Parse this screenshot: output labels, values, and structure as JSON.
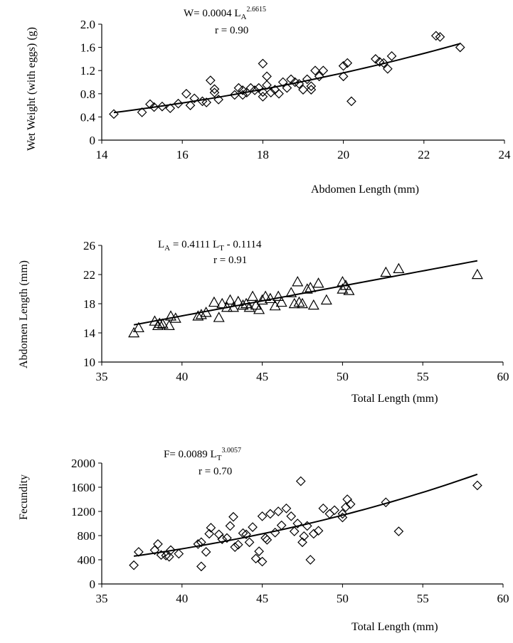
{
  "chart_data": [
    {
      "type": "scatter",
      "marker": "diamond",
      "equation": {
        "prefix": "W= 0.0004 L",
        "subscript": "A",
        "superscript": "2.6615",
        "r": "r = 0.90"
      },
      "xlabel": "Abdomen Length (mm)",
      "ylabel": "Wet Weight (with eggs) (g)",
      "xlim": [
        14,
        24
      ],
      "ylim": [
        0,
        2.0
      ],
      "xticks": [
        "14",
        "16",
        "18",
        "20",
        "22",
        "24"
      ],
      "yticks": [
        "0",
        "0.4",
        "0.8",
        "1.2",
        "1.6",
        "2.0"
      ],
      "points": [
        [
          14.3,
          0.45
        ],
        [
          15.0,
          0.48
        ],
        [
          15.2,
          0.62
        ],
        [
          15.3,
          0.57
        ],
        [
          15.5,
          0.58
        ],
        [
          15.7,
          0.55
        ],
        [
          15.9,
          0.63
        ],
        [
          16.1,
          0.8
        ],
        [
          16.2,
          0.6
        ],
        [
          16.3,
          0.72
        ],
        [
          16.5,
          0.67
        ],
        [
          16.6,
          0.65
        ],
        [
          16.7,
          1.03
        ],
        [
          16.8,
          0.88
        ],
        [
          16.9,
          0.7
        ],
        [
          16.8,
          0.82
        ],
        [
          17.3,
          0.78
        ],
        [
          17.4,
          0.9
        ],
        [
          17.5,
          0.78
        ],
        [
          17.5,
          0.86
        ],
        [
          17.6,
          0.82
        ],
        [
          17.7,
          0.9
        ],
        [
          17.8,
          0.86
        ],
        [
          17.9,
          0.9
        ],
        [
          18.0,
          1.32
        ],
        [
          18.0,
          0.83
        ],
        [
          18.0,
          0.75
        ],
        [
          18.1,
          1.1
        ],
        [
          18.1,
          0.95
        ],
        [
          18.2,
          0.82
        ],
        [
          18.3,
          0.87
        ],
        [
          18.4,
          0.8
        ],
        [
          18.5,
          1.0
        ],
        [
          18.6,
          0.9
        ],
        [
          18.7,
          1.05
        ],
        [
          18.8,
          1.0
        ],
        [
          18.9,
          0.97
        ],
        [
          19.0,
          0.87
        ],
        [
          19.1,
          1.05
        ],
        [
          19.2,
          0.93
        ],
        [
          19.2,
          0.87
        ],
        [
          19.3,
          1.2
        ],
        [
          19.4,
          1.1
        ],
        [
          19.5,
          1.2
        ],
        [
          20.0,
          1.28
        ],
        [
          20.0,
          1.1
        ],
        [
          20.1,
          1.33
        ],
        [
          20.2,
          0.67
        ],
        [
          20.8,
          1.4
        ],
        [
          20.9,
          1.35
        ],
        [
          21.0,
          1.33
        ],
        [
          21.1,
          1.23
        ],
        [
          21.2,
          1.45
        ],
        [
          22.3,
          1.8
        ],
        [
          22.4,
          1.78
        ],
        [
          22.9,
          1.6
        ]
      ],
      "trend": {
        "type": "power",
        "a": 0.0004,
        "b": 2.6615,
        "x_start": 14.3,
        "x_end": 22.9
      }
    },
    {
      "type": "scatter",
      "marker": "triangle",
      "equation": {
        "p1": "L",
        "s1": "A",
        "p2": " = 0.4111 L",
        "s2": "T",
        "p3": " - 0.1114",
        "r": "r = 0.91"
      },
      "xlabel": "Total Length (mm)",
      "ylabel": "Abdomen Length (mm)",
      "xlim": [
        35,
        60
      ],
      "ylim": [
        10,
        26
      ],
      "xticks": [
        "35",
        "40",
        "45",
        "50",
        "55",
        "60"
      ],
      "yticks": [
        "10",
        "14",
        "18",
        "22",
        "26"
      ],
      "points": [
        [
          37.0,
          14.0
        ],
        [
          37.3,
          14.7
        ],
        [
          38.3,
          15.6
        ],
        [
          38.5,
          15.0
        ],
        [
          38.6,
          15.3
        ],
        [
          38.8,
          15.2
        ],
        [
          39.2,
          15.0
        ],
        [
          39.3,
          16.3
        ],
        [
          39.6,
          16.0
        ],
        [
          41.0,
          16.3
        ],
        [
          41.2,
          16.5
        ],
        [
          41.5,
          16.8
        ],
        [
          42.0,
          18.2
        ],
        [
          42.3,
          16.1
        ],
        [
          42.5,
          18.0
        ],
        [
          42.8,
          17.5
        ],
        [
          43.0,
          18.5
        ],
        [
          43.2,
          17.5
        ],
        [
          43.5,
          18.3
        ],
        [
          43.8,
          17.8
        ],
        [
          44.0,
          18.0
        ],
        [
          44.2,
          17.5
        ],
        [
          44.4,
          19.0
        ],
        [
          44.6,
          17.8
        ],
        [
          44.8,
          17.2
        ],
        [
          45.0,
          18.5
        ],
        [
          45.2,
          19.0
        ],
        [
          45.5,
          18.7
        ],
        [
          45.8,
          17.7
        ],
        [
          46.0,
          19.0
        ],
        [
          46.2,
          18.2
        ],
        [
          46.8,
          19.5
        ],
        [
          47.0,
          18.0
        ],
        [
          47.2,
          21.0
        ],
        [
          47.3,
          18.2
        ],
        [
          47.5,
          18.0
        ],
        [
          47.8,
          20.0
        ],
        [
          48.0,
          20.2
        ],
        [
          48.2,
          17.8
        ],
        [
          48.5,
          20.8
        ],
        [
          49.0,
          18.5
        ],
        [
          50.0,
          20.0
        ],
        [
          50.0,
          21.0
        ],
        [
          50.2,
          20.5
        ],
        [
          50.4,
          19.8
        ],
        [
          52.7,
          22.3
        ],
        [
          53.5,
          22.8
        ],
        [
          58.4,
          22.0
        ]
      ],
      "trend": {
        "type": "linear",
        "m": 0.4111,
        "c": -0.1114,
        "x_start": 37.0,
        "x_end": 58.4
      }
    },
    {
      "type": "scatter",
      "marker": "diamond",
      "equation": {
        "prefix": "F= 0.0089 L",
        "subscript": "T",
        "superscript": "3.0057",
        "r": "r = 0.70"
      },
      "xlabel": "Total Length (mm)",
      "ylabel": "Fecundity",
      "xlim": [
        35,
        60
      ],
      "ylim": [
        0,
        2000
      ],
      "xticks": [
        "35",
        "40",
        "45",
        "50",
        "55",
        "60"
      ],
      "yticks": [
        "0",
        "400",
        "800",
        "1200",
        "1600",
        "2000"
      ],
      "points": [
        [
          37.0,
          310
        ],
        [
          37.3,
          530
        ],
        [
          38.3,
          560
        ],
        [
          38.5,
          660
        ],
        [
          38.7,
          480
        ],
        [
          39.0,
          470
        ],
        [
          39.2,
          450
        ],
        [
          39.3,
          560
        ],
        [
          39.8,
          500
        ],
        [
          41.0,
          660
        ],
        [
          41.2,
          690
        ],
        [
          41.2,
          290
        ],
        [
          41.5,
          530
        ],
        [
          41.7,
          830
        ],
        [
          41.8,
          930
        ],
        [
          42.3,
          820
        ],
        [
          42.5,
          740
        ],
        [
          42.8,
          760
        ],
        [
          43.0,
          960
        ],
        [
          43.2,
          1110
        ],
        [
          43.3,
          610
        ],
        [
          43.5,
          650
        ],
        [
          43.8,
          840
        ],
        [
          44.0,
          820
        ],
        [
          44.2,
          690
        ],
        [
          44.4,
          940
        ],
        [
          44.6,
          420
        ],
        [
          44.8,
          540
        ],
        [
          45.0,
          1120
        ],
        [
          45.0,
          370
        ],
        [
          45.2,
          760
        ],
        [
          45.3,
          730
        ],
        [
          45.5,
          1160
        ],
        [
          45.8,
          850
        ],
        [
          46.0,
          1200
        ],
        [
          46.2,
          970
        ],
        [
          46.5,
          1250
        ],
        [
          46.8,
          1120
        ],
        [
          47.0,
          870
        ],
        [
          47.2,
          1000
        ],
        [
          47.4,
          1700
        ],
        [
          47.5,
          690
        ],
        [
          47.6,
          790
        ],
        [
          47.8,
          960
        ],
        [
          48.0,
          400
        ],
        [
          48.2,
          830
        ],
        [
          48.5,
          880
        ],
        [
          48.8,
          1250
        ],
        [
          49.2,
          1160
        ],
        [
          49.5,
          1220
        ],
        [
          50.0,
          1100
        ],
        [
          50.0,
          1160
        ],
        [
          50.2,
          1270
        ],
        [
          50.3,
          1400
        ],
        [
          50.5,
          1320
        ],
        [
          52.7,
          1350
        ],
        [
          53.5,
          870
        ],
        [
          58.4,
          1630
        ]
      ],
      "trend": {
        "type": "power",
        "a": 0.0089,
        "b": 3.0057,
        "x_start": 37.0,
        "x_end": 58.4
      }
    }
  ]
}
